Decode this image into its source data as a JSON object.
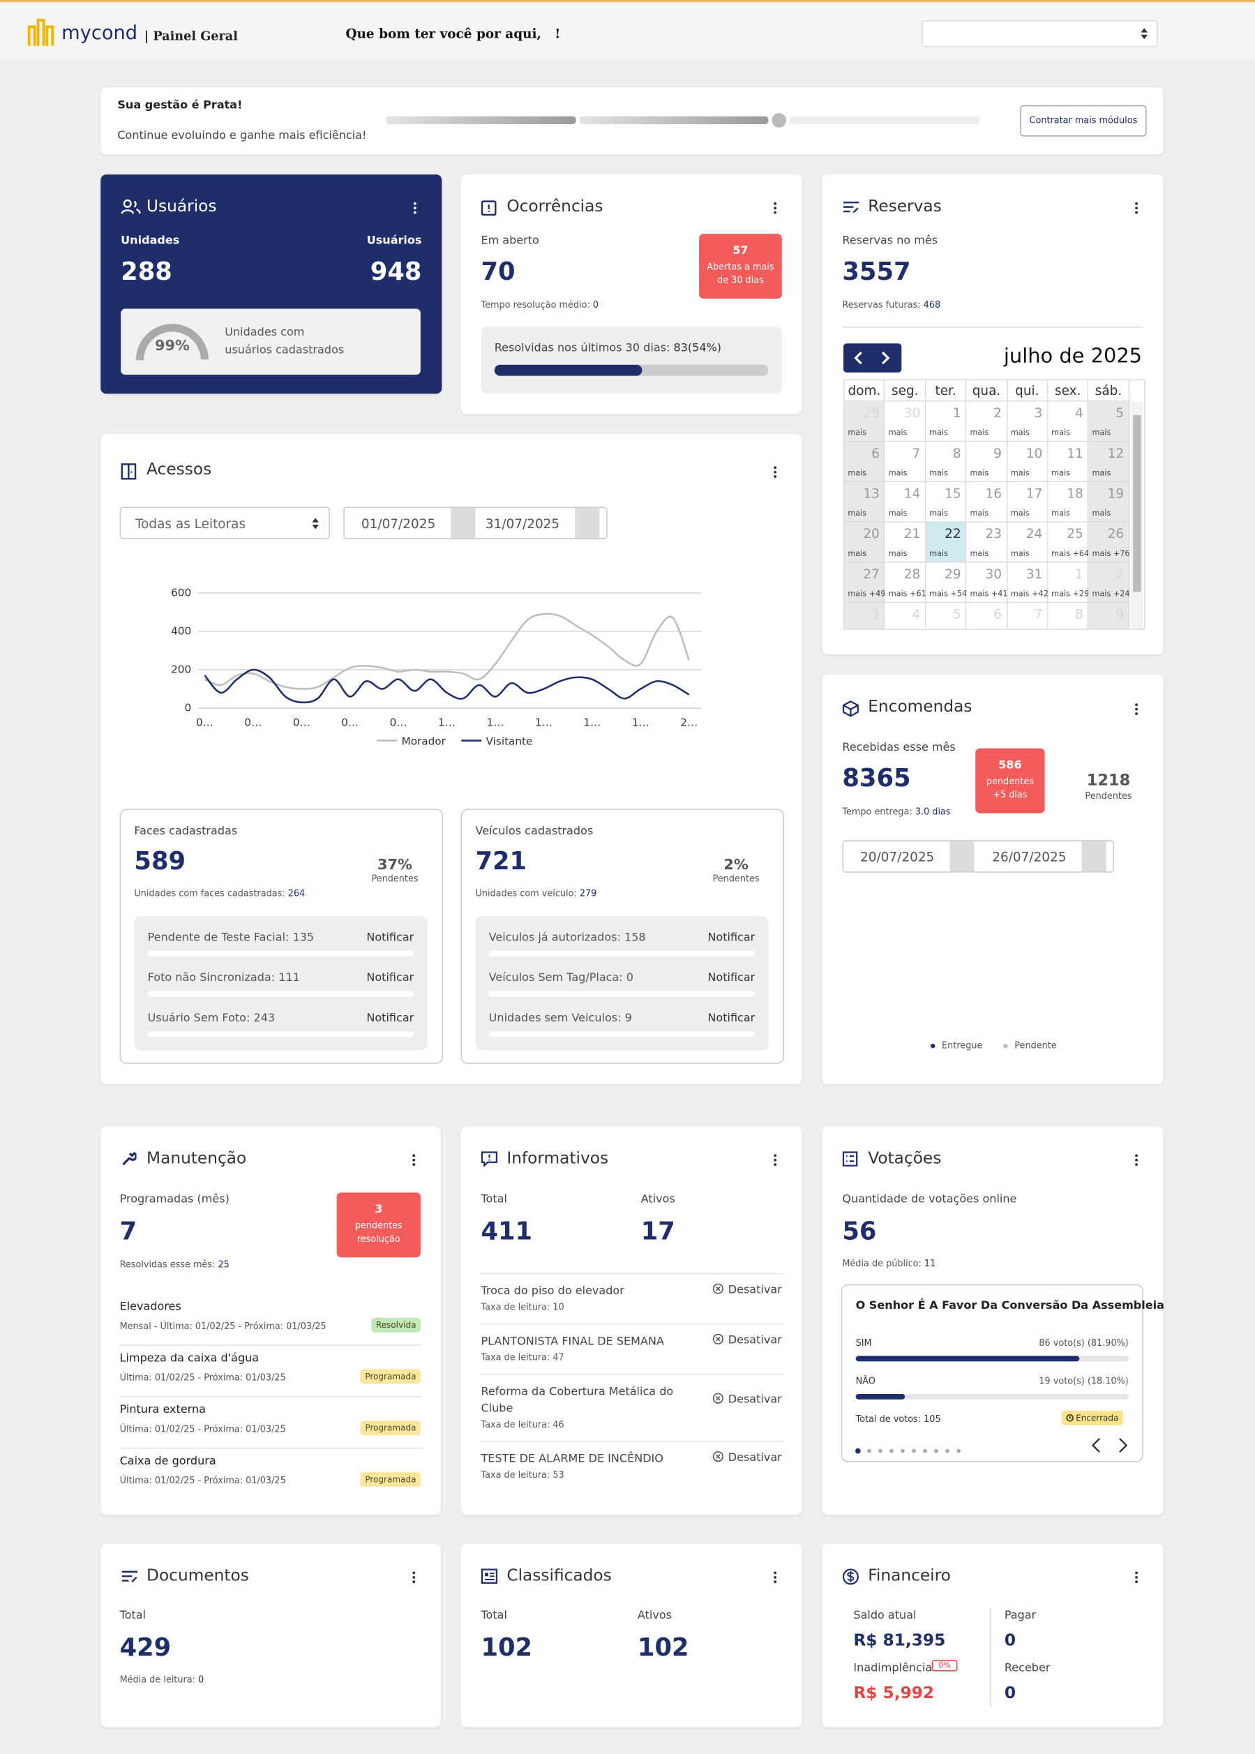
{
  "header": {
    "logo": "mycond",
    "section": "| Painel Geral",
    "greeting": "Que bom ter você por aqui,   !"
  },
  "banner": {
    "title": "Sua gestão é Prata!",
    "text": "Continue evoluindo e ganhe mais eficiência!",
    "button": "Contratar mais módulos"
  },
  "usuarios": {
    "title": "Usuários",
    "units_label": "Unidades",
    "users_label": "Usuários",
    "units": 288,
    "users": 948,
    "percent": 99,
    "percent_label": "99%",
    "percent_caption": "Unidades com usuários cadastrados"
  },
  "ocorrencias": {
    "title": "Ocorrências",
    "open_label": "Em aberto",
    "open": 70,
    "time_label": "Tempo resolução médio:",
    "time": 0,
    "badge_value": 57,
    "badge_text": "Abertas a mais de 30 dias",
    "resolved_text": "Resolvidas nos últimos 30 dias:",
    "resolved_label": "83(54%)",
    "resolved_percent": 54
  },
  "reservas": {
    "title": "Reservas",
    "month_label": "Reservas no mês",
    "month": 3557,
    "future_label": "Reservas futuras:",
    "future": 468,
    "calendar": {
      "title": "julho de 2025",
      "weekdays": [
        "dom.",
        "seg.",
        "ter.",
        "qua.",
        "qui.",
        "sex.",
        "sáb."
      ],
      "days": [
        {
          "day": 29,
          "more": "mais",
          "other": true
        },
        {
          "day": 30,
          "more": "mais",
          "other": true
        },
        {
          "day": 1,
          "more": "mais"
        },
        {
          "day": 2,
          "more": "mais"
        },
        {
          "day": 3,
          "more": "mais"
        },
        {
          "day": 4,
          "more": "mais"
        },
        {
          "day": 5,
          "more": "mais"
        },
        {
          "day": 6,
          "more": "mais"
        },
        {
          "day": 7,
          "more": "mais"
        },
        {
          "day": 8,
          "more": "mais"
        },
        {
          "day": 9,
          "more": "mais"
        },
        {
          "day": 10,
          "more": "mais"
        },
        {
          "day": 11,
          "more": "mais"
        },
        {
          "day": 12,
          "more": "mais"
        },
        {
          "day": 13,
          "more": "mais"
        },
        {
          "day": 14,
          "more": "mais"
        },
        {
          "day": 15,
          "more": "mais"
        },
        {
          "day": 16,
          "more": "mais"
        },
        {
          "day": 17,
          "more": "mais"
        },
        {
          "day": 18,
          "more": "mais"
        },
        {
          "day": 19,
          "more": "mais"
        },
        {
          "day": 20,
          "more": "mais"
        },
        {
          "day": 21,
          "more": "mais"
        },
        {
          "day": 22,
          "more": "mais",
          "today": true
        },
        {
          "day": 23,
          "more": "mais"
        },
        {
          "day": 24,
          "more": "mais"
        },
        {
          "day": 25,
          "more": "mais +64"
        },
        {
          "day": 26,
          "more": "mais +76"
        },
        {
          "day": 27,
          "more": "mais +49"
        },
        {
          "day": 28,
          "more": "mais +61"
        },
        {
          "day": 29,
          "more": "mais +54"
        },
        {
          "day": 30,
          "more": "mais +41"
        },
        {
          "day": 31,
          "more": "mais +42"
        },
        {
          "day": 1,
          "more": "mais +29",
          "other": true
        },
        {
          "day": 2,
          "more": "mais +24",
          "other": true
        },
        {
          "day": 3,
          "other": true
        },
        {
          "day": 4,
          "other": true
        },
        {
          "day": 5,
          "other": true
        },
        {
          "day": 6,
          "other": true
        },
        {
          "day": 7,
          "other": true
        },
        {
          "day": 8,
          "other": true
        },
        {
          "day": 9,
          "other": true
        }
      ]
    }
  },
  "acessos": {
    "title": "Acessos",
    "reader": "Todas as Leitoras",
    "date_from": "01/07/2025",
    "date_to": "31/07/2025",
    "faces": {
      "title": "Faces cadastradas",
      "value": 589,
      "pending_label": "37%",
      "pending_caption": "Pendentes",
      "units_label": "Unidades com faces cadastradas:",
      "units": 264,
      "items": [
        {
          "label": "Pendente de Teste Facial: 135",
          "action": "Notificar"
        },
        {
          "label": "Foto não Sincronizada: 111",
          "action": "Notificar"
        },
        {
          "label": "Usuário Sem Foto: 243",
          "action": "Notificar"
        }
      ]
    },
    "vehicles": {
      "title": "Veículos cadastrados",
      "value": 721,
      "pending_label": "2%",
      "pending_caption": "Pendentes",
      "units_label": "Unidades com veículo:",
      "units": 279,
      "items": [
        {
          "label": "Veiculos já autorizados: 158",
          "action": "Notificar"
        },
        {
          "label": "Veículos Sem Tag/Placa: 0",
          "action": "Notificar"
        },
        {
          "label": "Unidades sem Veiculos: 9",
          "action": "Notificar"
        }
      ]
    }
  },
  "chart_data": {
    "type": "line",
    "grid": true,
    "ylim": [
      0,
      600
    ],
    "yticks": [
      0,
      200,
      400,
      600
    ],
    "categories": [
      "0…",
      null,
      null,
      "0…",
      null,
      null,
      "0…",
      null,
      null,
      "0…",
      null,
      null,
      "0…",
      null,
      null,
      "1…",
      null,
      null,
      "1…",
      null,
      null,
      "1…",
      null,
      null,
      "1…",
      null,
      null,
      "1…",
      null,
      null,
      "2…"
    ],
    "series": [
      {
        "name": "Morador",
        "color": "#bdbdbd",
        "values": [
          150,
          120,
          170,
          180,
          140,
          110,
          100,
          110,
          160,
          210,
          220,
          210,
          190,
          200,
          190,
          190,
          180,
          150,
          230,
          350,
          460,
          490,
          480,
          430,
          380,
          320,
          250,
          230,
          400,
          470,
          250
        ]
      },
      {
        "name": "Visitante",
        "color": "#1f2d6b",
        "values": [
          170,
          80,
          150,
          200,
          160,
          60,
          30,
          50,
          150,
          60,
          140,
          100,
          150,
          90,
          150,
          80,
          50,
          120,
          60,
          130,
          80,
          100,
          140,
          160,
          150,
          100,
          50,
          100,
          140,
          120,
          70
        ]
      }
    ]
  },
  "encomendas": {
    "title": "Encomendas",
    "received_label": "Recebidas esse mês",
    "received": 8365,
    "time_label": "Tempo entrega:",
    "time": "3.0 dias",
    "badge_value": 586,
    "badge_text": "pendentes +5 dias",
    "pending": 1218,
    "pending_label": "Pendentes",
    "date_from": "20/07/2025",
    "date_to": "26/07/2025",
    "legend": [
      "Entregue",
      "Pendente"
    ]
  },
  "manutencao": {
    "title": "Manutenção",
    "planned_label": "Programadas (mês)",
    "planned": 7,
    "resolved_label": "Resolvidas esse mês:",
    "resolved": 25,
    "badge_value": 3,
    "badge_text": "pendentes resolução",
    "items": [
      {
        "name": "Elevadores",
        "schedule": "Mensal - Última: 01/02/25 - Próxima: 01/03/25",
        "status": "Resolvida",
        "color": "#c3e8b8"
      },
      {
        "name": "Limpeza da caixa d'água",
        "schedule": "Última: 01/02/25 - Próxima: 01/03/25",
        "status": "Programada",
        "color": "#fbe6a0"
      },
      {
        "name": "Pintura externa",
        "schedule": "Última: 01/02/25 - Próxima: 01/03/25",
        "status": "Programada",
        "color": "#fbe6a0"
      },
      {
        "name": "Caixa de gordura",
        "schedule": "Última: 01/02/25 - Próxima: 01/03/25",
        "status": "Programada",
        "color": "#fbe6a0"
      }
    ]
  },
  "informativos": {
    "title": "Informativos",
    "total_label": "Total",
    "total": 411,
    "active_label": "Ativos",
    "active": 17,
    "items": [
      {
        "title": "Troca do piso do elevador",
        "rate_label": "Taxa de leitura:",
        "rate": 10,
        "action": "Desativar"
      },
      {
        "title": "PLANTONISTA FINAL DE SEMANA",
        "rate_label": "Taxa de leitura:",
        "rate": 47,
        "action": "Desativar"
      },
      {
        "title": "Reforma da Cobertura Metálica do Clube",
        "rate_label": "Taxa de leitura:",
        "rate": 46,
        "action": "Desativar"
      },
      {
        "title": "TESTE DE ALARME DE INCÊNDIO",
        "rate_label": "Taxa de leitura:",
        "rate": 53,
        "action": "Desativar"
      }
    ]
  },
  "votacoes": {
    "title": "Votações",
    "count_label": "Quantidade de votações online",
    "count": 56,
    "audience_label": "Média de público:",
    "audience": 11,
    "poll": {
      "question": "O Senhor É A Favor Da Conversão Da Assembleia",
      "options": [
        {
          "name": "SIM",
          "label": "86 voto(s) (81.90%)",
          "percent": 81.9
        },
        {
          "name": "NÃO",
          "label": "19 voto(s) (18.10%)",
          "percent": 18.1
        }
      ],
      "total_label": "Total de votos: 105",
      "status": "Encerrada"
    }
  },
  "documentos": {
    "title": "Documentos",
    "total_label": "Total",
    "total": 429,
    "reading_label": "Média de leitura:",
    "reading": 0
  },
  "classificados": {
    "title": "Classificados",
    "total_label": "Total",
    "total": 102,
    "active_label": "Ativos",
    "active": 102
  },
  "financeiro": {
    "title": "Financeiro",
    "balance_label": "Saldo atual",
    "balance": "R$ 81,395",
    "default_label": "Inadimplência",
    "default_rate": "0%",
    "default_value": "R$ 5,992",
    "pay_label": "Pagar",
    "pay": 0,
    "receive_label": "Receber",
    "receive": 0
  }
}
